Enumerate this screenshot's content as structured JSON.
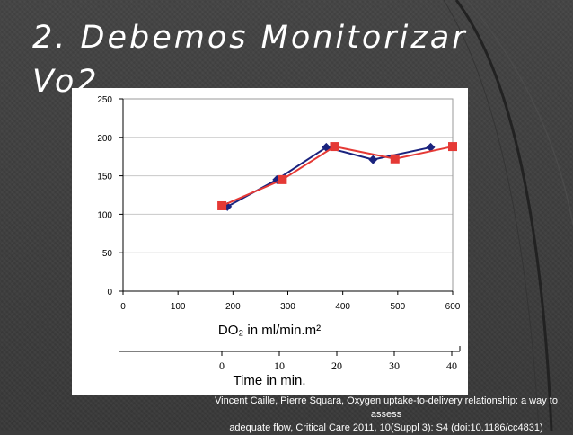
{
  "slide": {
    "title_line1": "2. Debemos Monitorizar",
    "title_line2": "Vo2"
  },
  "caption": {
    "line1": "Vincent Caille, Pierre Squara, Oxygen uptake-to-delivery relationship: a way to assess",
    "line2": "adequate flow, Critical Care 2011,  10(Suppl 3): S4 (doi:10.1186/cc4831)"
  },
  "chart_data": {
    "type": "line",
    "xlabel": "DO₂ in ml/min.m²",
    "xlim": [
      0,
      600
    ],
    "ylim": [
      0,
      250
    ],
    "xticks": [
      0,
      100,
      200,
      300,
      400,
      500,
      600
    ],
    "yticks": [
      0,
      50,
      100,
      150,
      200,
      250
    ],
    "grid": "y",
    "secondary_axis": {
      "label": "Time in min.",
      "ticks": [
        0,
        10,
        20,
        30,
        40
      ]
    },
    "series": [
      {
        "marker": "diamond",
        "color": "#1a237e",
        "x": [
          190,
          280,
          370,
          455,
          560
        ],
        "y": [
          110,
          145,
          187,
          171,
          187
        ]
      },
      {
        "marker": "square",
        "color": "#e53935",
        "x": [
          180,
          290,
          385,
          495,
          600
        ],
        "y": [
          111,
          145,
          188,
          172,
          188
        ]
      }
    ]
  }
}
